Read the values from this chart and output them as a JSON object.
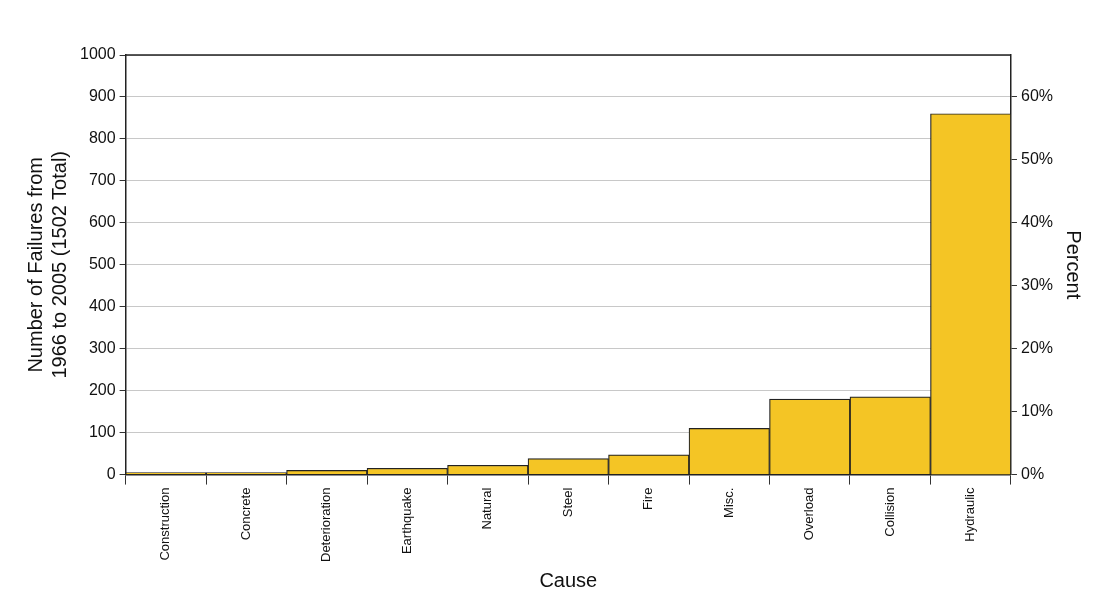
{
  "chart_data": {
    "type": "bar",
    "xlabel": "Cause",
    "ylabel": "Number of Failures from 1966 to 2005 (1502 Total)",
    "y2label": "Percent",
    "categories": [
      "Construction",
      "Concrete",
      "Deterioration",
      "Earthquake",
      "Natural",
      "Steel",
      "Fire",
      "Misc.",
      "Overload",
      "Collision",
      "Hydraulic"
    ],
    "series": [
      {
        "color": "#f4c525",
        "values": [
          5,
          5,
          10,
          15,
          22,
          38,
          47,
          110,
          180,
          185,
          860
        ]
      }
    ],
    "ylim": [
      0,
      1000
    ],
    "yticks": [
      0,
      100,
      200,
      300,
      400,
      500,
      600,
      700,
      800,
      900,
      1000
    ],
    "y2lim": [
      0,
      66.6
    ],
    "y2ticks": [
      {
        "value": 0,
        "label": "0%"
      },
      {
        "value": 10,
        "label": "10%"
      },
      {
        "value": 20,
        "label": "20%"
      },
      {
        "value": 30,
        "label": "30%"
      },
      {
        "value": 40,
        "label": "40%"
      },
      {
        "value": 50,
        "label": "50%"
      },
      {
        "value": 60,
        "label": "60%"
      }
    ],
    "grid": "y",
    "legend": false
  }
}
